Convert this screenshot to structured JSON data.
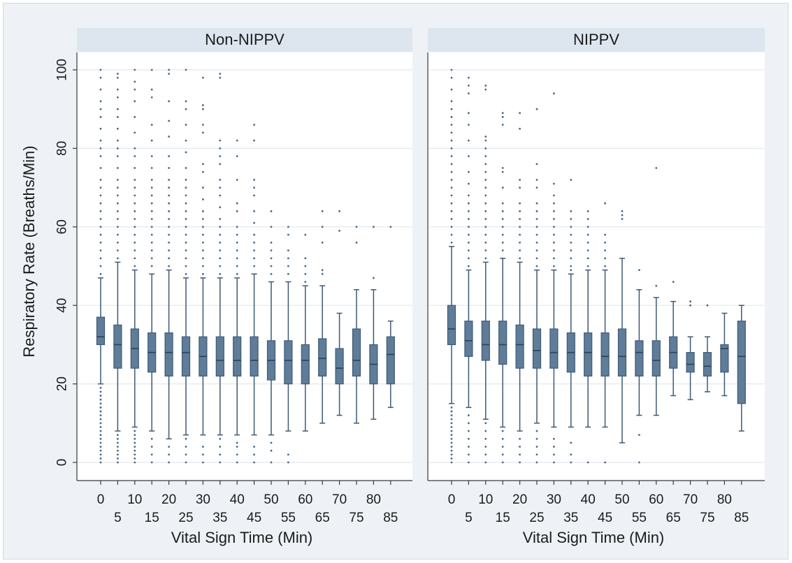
{
  "chart_data": {
    "type": "box",
    "ylabel": "Respiratory Rate (Breaths/Min)",
    "xlabel": "Vital Sign Time (Min)",
    "ylim": [
      0,
      100
    ],
    "yticks": [
      0,
      20,
      40,
      60,
      80,
      100
    ],
    "x_categories": [
      0,
      5,
      10,
      15,
      20,
      25,
      30,
      35,
      40,
      45,
      50,
      55,
      60,
      65,
      70,
      75,
      80,
      85
    ],
    "grid": true,
    "colors": {
      "box_fill": "#5f7d99",
      "box_stroke": "#3e5a76",
      "outlier": "#4a6884",
      "background": "#eef2f6",
      "strip": "#dde6ee"
    },
    "panels": [
      {
        "name": "Non-NIPPV",
        "boxes": [
          {
            "x": 0,
            "whisker_low": 20,
            "q1": 30,
            "median": 32,
            "q3": 37,
            "whisker_high": 47,
            "outliers_low": [
              0,
              1,
              2,
              3,
              4,
              5,
              6,
              7,
              8,
              9,
              10,
              11,
              12,
              13,
              14,
              15,
              16,
              17,
              18,
              19
            ],
            "outliers_high": [
              48,
              50,
              52,
              54,
              56,
              58,
              60,
              62,
              64,
              66,
              68,
              70,
              72,
              75,
              78,
              80,
              82,
              85,
              88,
              90,
              92,
              95,
              98,
              100
            ]
          },
          {
            "x": 5,
            "whisker_low": 8,
            "q1": 24,
            "median": 30,
            "q3": 35,
            "whisker_high": 51,
            "outliers_low": [
              0,
              1,
              2,
              3,
              4,
              5,
              6,
              7
            ],
            "outliers_high": [
              52,
              54,
              56,
              58,
              60,
              62,
              64,
              66,
              68,
              70,
              72,
              75,
              78,
              80,
              82,
              85,
              88,
              90,
              93,
              95,
              98,
              99
            ]
          },
          {
            "x": 10,
            "whisker_low": 9,
            "q1": 24,
            "median": 29,
            "q3": 34,
            "whisker_high": 49,
            "outliers_low": [
              0,
              1,
              2,
              3,
              4,
              5,
              6,
              7,
              8
            ],
            "outliers_high": [
              50,
              52,
              54,
              56,
              58,
              60,
              62,
              64,
              66,
              68,
              70,
              72,
              75,
              78,
              80,
              84,
              88,
              92,
              95,
              97,
              100
            ]
          },
          {
            "x": 15,
            "whisker_low": 8,
            "q1": 23,
            "median": 28,
            "q3": 33,
            "whisker_high": 48,
            "outliers_low": [
              0,
              2,
              4,
              6
            ],
            "outliers_high": [
              50,
              52,
              54,
              56,
              58,
              60,
              62,
              64,
              66,
              68,
              70,
              72,
              75,
              78,
              82,
              86,
              93,
              95,
              100
            ]
          },
          {
            "x": 20,
            "whisker_low": 6,
            "q1": 22,
            "median": 28,
            "q3": 33,
            "whisker_high": 49,
            "outliers_low": [
              0,
              2,
              4
            ],
            "outliers_high": [
              50,
              52,
              54,
              56,
              58,
              60,
              62,
              64,
              66,
              68,
              70,
              72,
              75,
              78,
              83,
              87,
              92,
              99,
              100
            ]
          },
          {
            "x": 25,
            "whisker_low": 7,
            "q1": 22,
            "median": 28,
            "q3": 32,
            "whisker_high": 47,
            "outliers_low": [
              0,
              2,
              4,
              6
            ],
            "outliers_high": [
              48,
              50,
              52,
              54,
              56,
              58,
              60,
              62,
              64,
              66,
              68,
              70,
              72,
              75,
              79,
              82,
              86,
              90,
              92,
              100
            ]
          },
          {
            "x": 30,
            "whisker_low": 7,
            "q1": 22,
            "median": 27,
            "q3": 32,
            "whisker_high": 47,
            "outliers_low": [
              0,
              2,
              4
            ],
            "outliers_high": [
              48,
              50,
              52,
              54,
              56,
              58,
              60,
              62,
              64,
              67,
              70,
              74,
              76,
              84,
              86,
              90,
              91,
              98
            ]
          },
          {
            "x": 35,
            "whisker_low": 7,
            "q1": 22,
            "median": 26,
            "q3": 32,
            "whisker_high": 47,
            "outliers_low": [
              0,
              2,
              4,
              6
            ],
            "outliers_high": [
              48,
              50,
              52,
              54,
              56,
              58,
              60,
              62,
              65,
              68,
              70,
              72,
              76,
              78,
              80,
              82,
              98,
              99
            ]
          },
          {
            "x": 40,
            "whisker_low": 7,
            "q1": 22,
            "median": 26,
            "q3": 32,
            "whisker_high": 47,
            "outliers_low": [
              0,
              2,
              4,
              5
            ],
            "outliers_high": [
              48,
              50,
              52,
              54,
              56,
              58,
              60,
              64,
              66,
              72,
              78,
              82
            ]
          },
          {
            "x": 45,
            "whisker_low": 7,
            "q1": 22,
            "median": 26,
            "q3": 32,
            "whisker_high": 48,
            "outliers_low": [
              0,
              2,
              4
            ],
            "outliers_high": [
              50,
              52,
              54,
              56,
              58,
              61,
              64,
              68,
              70,
              72,
              82,
              86
            ]
          },
          {
            "x": 50,
            "whisker_low": 7,
            "q1": 21,
            "median": 26,
            "q3": 31,
            "whisker_high": 46,
            "outliers_low": [
              0,
              3,
              5
            ],
            "outliers_high": [
              48,
              50,
              52,
              54,
              56,
              60,
              64
            ]
          },
          {
            "x": 55,
            "whisker_low": 8,
            "q1": 20,
            "median": 26,
            "q3": 31,
            "whisker_high": 46,
            "outliers_low": [
              0,
              2
            ],
            "outliers_high": [
              48,
              50,
              52,
              54,
              58,
              60
            ]
          },
          {
            "x": 60,
            "whisker_low": 8,
            "q1": 20,
            "median": 26,
            "q3": 30,
            "whisker_high": 45,
            "outliers_low": [],
            "outliers_high": [
              46,
              48,
              50,
              52,
              58
            ]
          },
          {
            "x": 65,
            "whisker_low": 10,
            "q1": 22,
            "median": 26.5,
            "q3": 31.5,
            "whisker_high": 45,
            "outliers_low": [],
            "outliers_high": [
              48,
              49,
              56,
              60,
              64
            ]
          },
          {
            "x": 70,
            "whisker_low": 12,
            "q1": 20,
            "median": 24,
            "q3": 29,
            "whisker_high": 38,
            "outliers_low": [],
            "outliers_high": [
              59,
              64
            ]
          },
          {
            "x": 75,
            "whisker_low": 10,
            "q1": 22,
            "median": 26,
            "q3": 34,
            "whisker_high": 44,
            "outliers_low": [],
            "outliers_high": [
              56,
              60
            ]
          },
          {
            "x": 80,
            "whisker_low": 11,
            "q1": 20,
            "median": 25,
            "q3": 30,
            "whisker_high": 44,
            "outliers_low": [],
            "outliers_high": [
              47,
              60
            ]
          },
          {
            "x": 85,
            "whisker_low": 14,
            "q1": 20,
            "median": 27.5,
            "q3": 32,
            "whisker_high": 36,
            "outliers_low": [],
            "outliers_high": [
              60
            ]
          }
        ]
      },
      {
        "name": "NIPPV",
        "boxes": [
          {
            "x": 0,
            "whisker_low": 15,
            "q1": 30,
            "median": 34,
            "q3": 40,
            "whisker_high": 55,
            "outliers_low": [
              0,
              1,
              2,
              3,
              4,
              5,
              6,
              7,
              8,
              9,
              10,
              11,
              12,
              13,
              14
            ],
            "outliers_high": [
              56,
              58,
              60,
              62,
              64,
              66,
              68,
              70,
              72,
              74,
              76,
              78,
              80,
              82,
              84,
              86,
              88,
              90,
              92,
              95,
              98,
              100
            ]
          },
          {
            "x": 5,
            "whisker_low": 14,
            "q1": 27,
            "median": 31,
            "q3": 36,
            "whisker_high": 49,
            "outliers_low": [
              0,
              2,
              4,
              6,
              8,
              10,
              12
            ],
            "outliers_high": [
              50,
              52,
              54,
              56,
              58,
              60,
              62,
              64,
              66,
              68,
              71,
              74,
              78,
              82,
              86,
              89,
              94,
              96,
              98
            ]
          },
          {
            "x": 10,
            "whisker_low": 11,
            "q1": 26,
            "median": 30,
            "q3": 36,
            "whisker_high": 51,
            "outliers_low": [
              0,
              2,
              4,
              6,
              8,
              10
            ],
            "outliers_high": [
              52,
              54,
              56,
              58,
              60,
              62,
              64,
              66,
              68,
              70,
              72,
              74,
              76,
              78,
              80,
              82,
              83,
              95,
              96
            ]
          },
          {
            "x": 15,
            "whisker_low": 9,
            "q1": 25,
            "median": 30,
            "q3": 36,
            "whisker_high": 52,
            "outliers_low": [
              0,
              2,
              4,
              6,
              8
            ],
            "outliers_high": [
              54,
              56,
              58,
              60,
              62,
              64,
              66,
              70,
              74,
              75,
              86,
              88,
              89
            ]
          },
          {
            "x": 20,
            "whisker_low": 8,
            "q1": 24,
            "median": 30,
            "q3": 35,
            "whisker_high": 51,
            "outliers_low": [
              0,
              2,
              4,
              6
            ],
            "outliers_high": [
              52,
              54,
              56,
              58,
              60,
              62,
              64,
              66,
              70,
              72,
              85,
              89
            ]
          },
          {
            "x": 25,
            "whisker_low": 10,
            "q1": 24,
            "median": 28.5,
            "q3": 34,
            "whisker_high": 49,
            "outliers_low": [
              0,
              2,
              4,
              6,
              8
            ],
            "outliers_high": [
              50,
              52,
              54,
              56,
              58,
              60,
              62,
              64,
              66,
              70,
              72,
              76,
              90
            ]
          },
          {
            "x": 30,
            "whisker_low": 9,
            "q1": 24,
            "median": 28,
            "q3": 34,
            "whisker_high": 49,
            "outliers_low": [
              0,
              2,
              4,
              6
            ],
            "outliers_high": [
              50,
              52,
              54,
              56,
              58,
              60,
              62,
              64,
              66,
              68,
              71,
              94
            ]
          },
          {
            "x": 35,
            "whisker_low": 9,
            "q1": 23,
            "median": 28,
            "q3": 33,
            "whisker_high": 48,
            "outliers_low": [
              0,
              2,
              5
            ],
            "outliers_high": [
              49,
              50,
              52,
              54,
              56,
              58,
              60,
              62,
              64,
              72
            ]
          },
          {
            "x": 40,
            "whisker_low": 9,
            "q1": 22,
            "median": 28,
            "q3": 33,
            "whisker_high": 49,
            "outliers_low": [
              0
            ],
            "outliers_high": [
              50,
              52,
              54,
              56,
              58,
              60,
              62,
              64
            ]
          },
          {
            "x": 45,
            "whisker_low": 9,
            "q1": 22,
            "median": 27,
            "q3": 33,
            "whisker_high": 49,
            "outliers_low": [
              0
            ],
            "outliers_high": [
              50,
              52,
              54,
              56,
              58,
              66
            ]
          },
          {
            "x": 50,
            "whisker_low": 5,
            "q1": 22,
            "median": 27,
            "q3": 34,
            "whisker_high": 52,
            "outliers_low": [],
            "outliers_high": [
              62,
              63,
              64
            ]
          },
          {
            "x": 55,
            "whisker_low": 12,
            "q1": 22,
            "median": 28,
            "q3": 31,
            "whisker_high": 44,
            "outliers_low": [
              0,
              7
            ],
            "outliers_high": [
              49
            ]
          },
          {
            "x": 60,
            "whisker_low": 12,
            "q1": 22,
            "median": 26,
            "q3": 31,
            "whisker_high": 42,
            "outliers_low": [],
            "outliers_high": [
              45,
              75
            ]
          },
          {
            "x": 65,
            "whisker_low": 17,
            "q1": 24,
            "median": 28,
            "q3": 32,
            "whisker_high": 41,
            "outliers_low": [],
            "outliers_high": [
              46
            ]
          },
          {
            "x": 70,
            "whisker_low": 16,
            "q1": 23,
            "median": 25,
            "q3": 28,
            "whisker_high": 32,
            "outliers_low": [],
            "outliers_high": [
              40,
              41
            ]
          },
          {
            "x": 75,
            "whisker_low": 18,
            "q1": 22,
            "median": 24.5,
            "q3": 28,
            "whisker_high": 32,
            "outliers_low": [],
            "outliers_high": [
              40
            ]
          },
          {
            "x": 80,
            "whisker_low": 17,
            "q1": 23,
            "median": 29,
            "q3": 30,
            "whisker_high": 38,
            "outliers_low": [],
            "outliers_high": []
          },
          {
            "x": 85,
            "whisker_low": 8,
            "q1": 15,
            "median": 27,
            "q3": 36,
            "whisker_high": 40,
            "outliers_low": [],
            "outliers_high": []
          }
        ]
      }
    ]
  }
}
